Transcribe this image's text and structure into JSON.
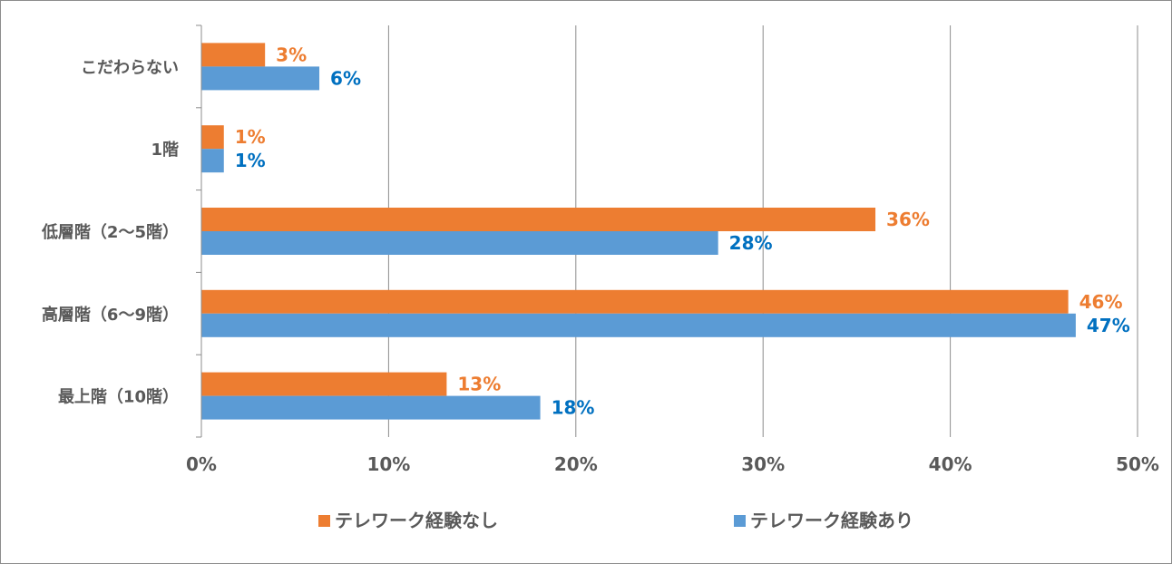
{
  "chart_data": {
    "type": "bar",
    "orientation": "horizontal",
    "categories": [
      "こだわらない",
      "1階",
      "低層階（2〜5階）",
      "高層階（6〜9階）",
      "最上階（10階）"
    ],
    "series": [
      {
        "name": "テレワーク経験なし",
        "color": "#ed7d31",
        "label_color": "#ed7d31",
        "values": [
          3.4,
          1.2,
          36.0,
          46.3,
          13.1
        ],
        "labels": [
          "3%",
          "1%",
          "36%",
          "46%",
          "13%"
        ]
      },
      {
        "name": "テレワーク経験あり",
        "color": "#5b9bd5",
        "label_color": "#0070c0",
        "values": [
          6.3,
          1.2,
          27.6,
          46.7,
          18.1
        ],
        "labels": [
          "6%",
          "1%",
          "28%",
          "47%",
          "18%"
        ]
      }
    ],
    "xlim": [
      0,
      50
    ],
    "xticks": [
      0,
      10,
      20,
      30,
      40,
      50
    ],
    "xtick_labels": [
      "0%",
      "10%",
      "20%",
      "30%",
      "40%",
      "50%"
    ],
    "grid": true,
    "legend": "bottom"
  }
}
